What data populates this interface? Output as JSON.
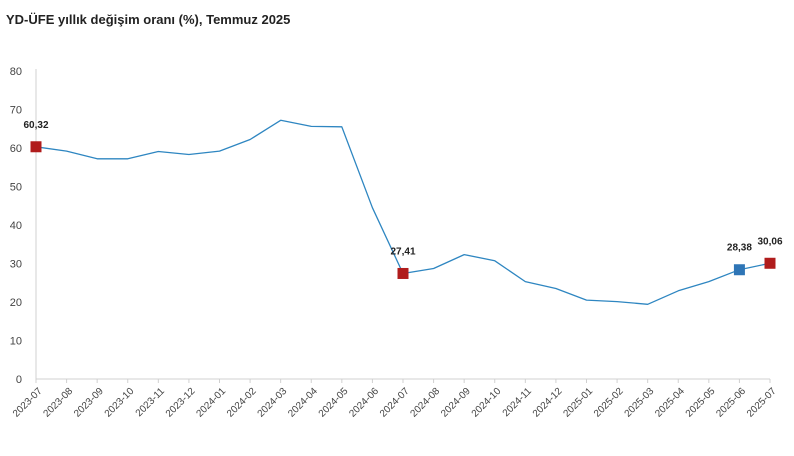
{
  "title": "YD-ÜFE yıllık değişim oranı (%), Temmuz 2025",
  "chart_data": {
    "type": "line",
    "title": "YD-ÜFE yıllık değişim oranı (%), Temmuz 2025",
    "xlabel": "",
    "ylabel": "",
    "ylim": [
      0,
      80
    ],
    "yticks": [
      "0",
      "10",
      "20",
      "30",
      "40",
      "50",
      "60",
      "70",
      "80"
    ],
    "grid": false,
    "legend": "none",
    "categories": [
      "2023-07",
      "2023-08",
      "2023-09",
      "2023-10",
      "2023-11",
      "2023-12",
      "2024-01",
      "2024-02",
      "2024-03",
      "2024-04",
      "2024-05",
      "2024-06",
      "2024-07",
      "2024-08",
      "2024-09",
      "2024-10",
      "2024-11",
      "2024-12",
      "2025-01",
      "2025-02",
      "2025-03",
      "2025-04",
      "2025-05",
      "2025-06",
      "2025-07"
    ],
    "series": [
      {
        "values": [
          60.32,
          59.2,
          57.2,
          57.2,
          59.1,
          58.3,
          59.2,
          62.2,
          67.2,
          65.6,
          65.5,
          44.5,
          27.41,
          28.7,
          32.3,
          30.7,
          25.3,
          23.5,
          20.5,
          20.1,
          19.4,
          22.9,
          25.3,
          28.38,
          30.06
        ],
        "color": "#2e86c1"
      }
    ],
    "highlights": [
      {
        "index": 0,
        "label": "60,32",
        "color": "#b01c1c"
      },
      {
        "index": 12,
        "label": "27,41",
        "color": "#b01c1c"
      },
      {
        "index": 23,
        "label": "28,38",
        "color": "#2e75b6"
      },
      {
        "index": 24,
        "label": "30,06",
        "color": "#b01c1c"
      }
    ]
  }
}
